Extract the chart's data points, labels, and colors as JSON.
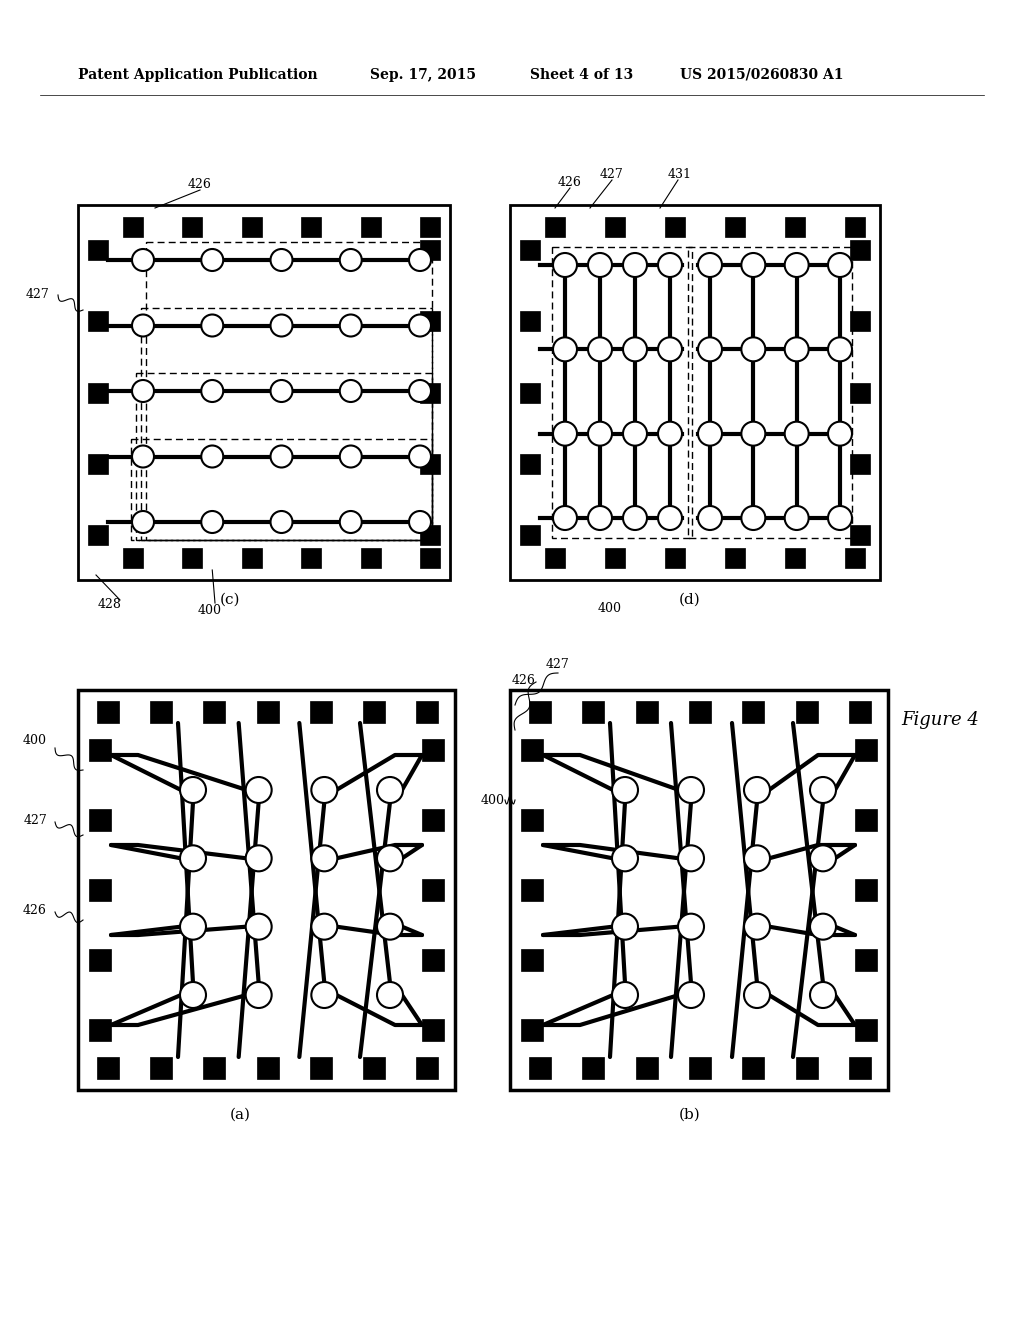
{
  "bg_color": "#ffffff",
  "header_text": "Patent Application Publication",
  "header_date": "Sep. 17, 2015",
  "header_sheet": "Sheet 4 of 13",
  "header_patent": "US 2015/0260830 A1",
  "figure_label": "Figure 4",
  "line_color": "#000000",
  "pad_color": "#000000"
}
